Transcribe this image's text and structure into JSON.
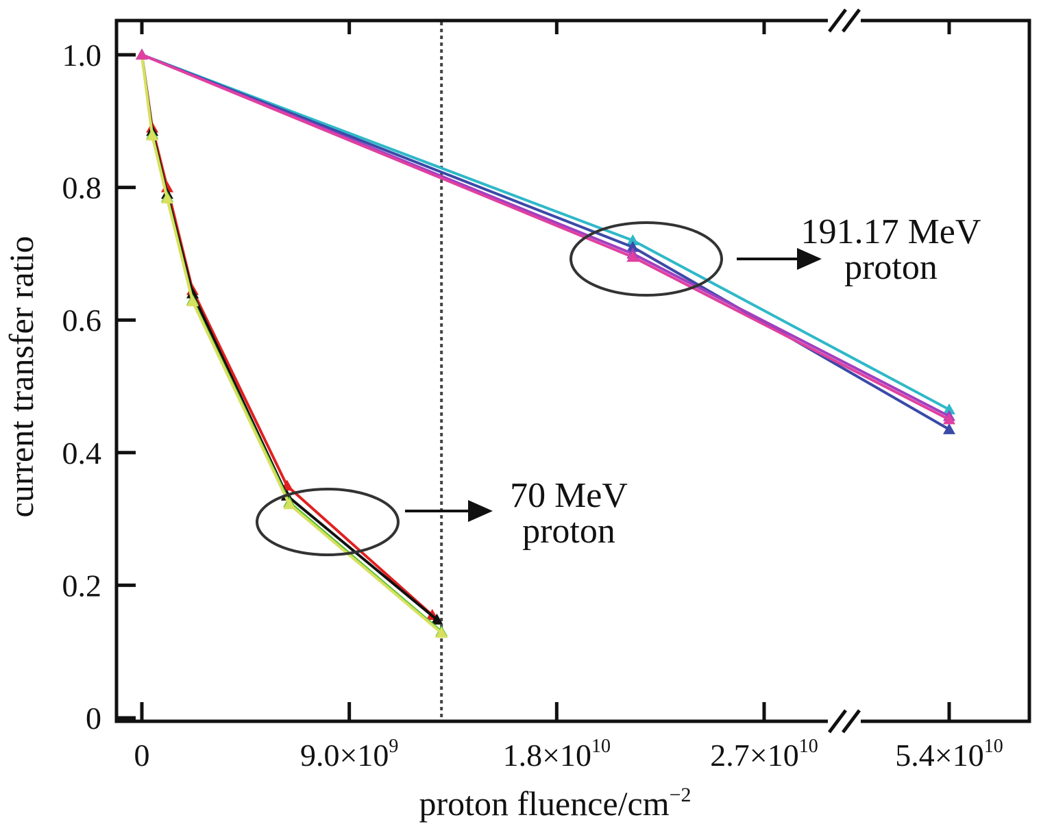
{
  "chart_data": {
    "type": "line",
    "xlabel": "proton fluence/cm",
    "xlabel_sup": "−2",
    "ylabel": "current transfer ratio",
    "x_ticks": [
      {
        "value": 0,
        "label": "0"
      },
      {
        "value": 9000000000.0,
        "label": "9.0×10",
        "exp": "9"
      },
      {
        "value": 18000000000.0,
        "label": "1.8×10",
        "exp": "10"
      },
      {
        "value": 27000000000.0,
        "label": "2.7×10",
        "exp": "10"
      },
      {
        "value": 54000000000.0,
        "label": "5.4×10",
        "exp": "10"
      }
    ],
    "y_ticks": [
      {
        "value": 0,
        "label": "0"
      },
      {
        "value": 0.2,
        "label": "0.2"
      },
      {
        "value": 0.4,
        "label": "0.4"
      },
      {
        "value": 0.6,
        "label": "0.6"
      },
      {
        "value": 0.8,
        "label": "0.8"
      },
      {
        "value": 1.0,
        "label": "1.0"
      }
    ],
    "ylim": [
      0,
      1.05
    ],
    "axis_break": "between 2.7×10^10 and 5.4×10^10",
    "reference_line": {
      "x": 13000000000.0,
      "style": "dotted"
    },
    "series": [
      {
        "color": "#e02020",
        "points": [
          [
            0,
            1.0
          ],
          [
            450000000.0,
            0.89
          ],
          [
            1100000000.0,
            0.8
          ],
          [
            2200000000.0,
            0.645
          ],
          [
            6300000000.0,
            0.35
          ],
          [
            12600000000.0,
            0.155
          ]
        ]
      },
      {
        "color": "#111111",
        "points": [
          [
            0,
            1.0
          ],
          [
            450000000.0,
            0.885
          ],
          [
            1100000000.0,
            0.79
          ],
          [
            2200000000.0,
            0.64
          ],
          [
            6300000000.0,
            0.335
          ],
          [
            12800000000.0,
            0.148
          ]
        ]
      },
      {
        "color": "#58c030",
        "points": [
          [
            0,
            1.0
          ],
          [
            450000000.0,
            0.88
          ],
          [
            1100000000.0,
            0.785
          ],
          [
            2200000000.0,
            0.63
          ],
          [
            6400000000.0,
            0.325
          ],
          [
            13000000000.0,
            0.13
          ]
        ]
      },
      {
        "color": "#d8e060",
        "points": [
          [
            0,
            1.0
          ],
          [
            450000000.0,
            0.878
          ],
          [
            1100000000.0,
            0.783
          ],
          [
            2200000000.0,
            0.628
          ],
          [
            6400000000.0,
            0.322
          ],
          [
            13000000000.0,
            0.128
          ]
        ]
      },
      {
        "color": "#2fb8c8",
        "points": [
          [
            0,
            1.0
          ],
          [
            21300000000.0,
            0.72
          ],
          [
            54000000000.0,
            0.465
          ]
        ]
      },
      {
        "color": "#3a4aa8",
        "points": [
          [
            0,
            1.0
          ],
          [
            21300000000.0,
            0.71
          ],
          [
            54000000000.0,
            0.435
          ]
        ]
      },
      {
        "color": "#a040c0",
        "points": [
          [
            0,
            1.0
          ],
          [
            21300000000.0,
            0.7
          ],
          [
            54000000000.0,
            0.455
          ]
        ]
      },
      {
        "color": "#e040a0",
        "points": [
          [
            0,
            1.0
          ],
          [
            21300000000.0,
            0.695
          ],
          [
            54000000000.0,
            0.45
          ]
        ]
      }
    ],
    "annotations": [
      {
        "id": "a191",
        "lines": [
          "191.17 MeV",
          "proton"
        ],
        "circle_at": {
          "x": 21300000000.0,
          "y": 0.7
        }
      },
      {
        "id": "a70",
        "lines": [
          "70 MeV",
          "proton"
        ],
        "circle_at": {
          "x": 8000000000.0,
          "y": 0.3
        }
      }
    ]
  }
}
